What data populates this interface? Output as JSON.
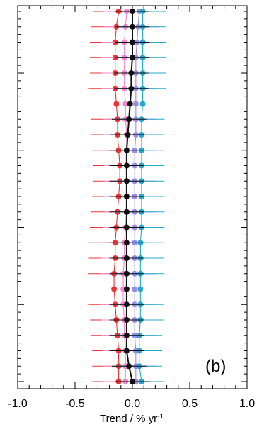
{
  "chart_data": {
    "type": "line",
    "panel_label": "(b)",
    "xlabel_text": "Trend / % yr",
    "xlabel_exponent": "-1",
    "xlim": [
      -1.0,
      1.0
    ],
    "x_ticks": [
      "-1.0",
      "-0.5",
      "0.0",
      "0.5",
      "1.0"
    ],
    "x_tick_values": [
      -1.0,
      -0.5,
      0.0,
      0.5,
      1.0
    ],
    "x_minor_step": 0.1,
    "y_levels": 25,
    "y_major_every": 5,
    "y_tick_labels_shown": false,
    "series": [
      {
        "color": "#ee3333",
        "x": [
          -0.12,
          -0.14,
          -0.15,
          -0.15,
          -0.15,
          -0.15,
          -0.14,
          -0.13,
          -0.13,
          -0.12,
          -0.11,
          -0.11,
          -0.12,
          -0.13,
          -0.14,
          -0.15,
          -0.15,
          -0.16,
          -0.16,
          -0.15,
          -0.14,
          -0.13,
          -0.12,
          -0.12,
          -0.12
        ],
        "err": [
          0.22,
          0.22,
          0.22,
          0.22,
          0.22,
          0.23,
          0.23,
          0.23,
          0.23,
          0.23,
          0.23,
          0.23,
          0.23,
          0.23,
          0.23,
          0.23,
          0.23,
          0.23,
          0.23,
          0.23,
          0.23,
          0.23,
          0.23,
          0.23,
          0.23
        ]
      },
      {
        "color": "#ee88cc",
        "x": [
          -0.05,
          -0.06,
          -0.07,
          -0.07,
          -0.07,
          -0.07,
          -0.06,
          -0.06,
          -0.05,
          -0.05,
          -0.05,
          -0.05,
          -0.05,
          -0.05,
          -0.06,
          -0.07,
          -0.07,
          -0.08,
          -0.08,
          -0.08,
          -0.07,
          -0.07,
          -0.06,
          -0.06,
          -0.06
        ],
        "err": [
          0.2,
          0.2,
          0.2,
          0.2,
          0.2,
          0.2,
          0.2,
          0.2,
          0.2,
          0.2,
          0.2,
          0.2,
          0.2,
          0.2,
          0.2,
          0.2,
          0.2,
          0.2,
          0.2,
          0.2,
          0.2,
          0.2,
          0.2,
          0.2,
          0.2
        ]
      },
      {
        "color": "#9b8bee",
        "x": [
          0.06,
          0.05,
          0.04,
          0.03,
          0.03,
          0.03,
          0.03,
          0.03,
          0.03,
          0.02,
          0.02,
          0.02,
          0.02,
          0.02,
          0.02,
          0.02,
          0.02,
          0.02,
          0.02,
          0.02,
          0.02,
          0.02,
          0.03,
          0.03,
          0.03
        ],
        "err": [
          0.18,
          0.18,
          0.18,
          0.18,
          0.18,
          0.18,
          0.18,
          0.18,
          0.18,
          0.18,
          0.18,
          0.18,
          0.18,
          0.18,
          0.18,
          0.18,
          0.18,
          0.18,
          0.18,
          0.18,
          0.18,
          0.18,
          0.18,
          0.18,
          0.18
        ]
      },
      {
        "color": "#22aacc",
        "x": [
          0.09,
          0.09,
          0.09,
          0.09,
          0.09,
          0.09,
          0.09,
          0.08,
          0.08,
          0.08,
          0.08,
          0.08,
          0.08,
          0.08,
          0.08,
          0.07,
          0.07,
          0.07,
          0.07,
          0.07,
          0.07,
          0.06,
          0.06,
          0.06,
          0.08
        ],
        "err": [
          0.2,
          0.2,
          0.2,
          0.2,
          0.2,
          0.2,
          0.2,
          0.2,
          0.2,
          0.2,
          0.2,
          0.2,
          0.2,
          0.2,
          0.2,
          0.2,
          0.2,
          0.2,
          0.2,
          0.2,
          0.2,
          0.2,
          0.2,
          0.2,
          0.2
        ]
      },
      {
        "color": "#111111",
        "x": [
          0.0,
          0.0,
          0.0,
          0.0,
          -0.01,
          -0.01,
          -0.02,
          -0.03,
          -0.04,
          -0.05,
          -0.05,
          -0.05,
          -0.05,
          -0.05,
          -0.05,
          -0.05,
          -0.05,
          -0.05,
          -0.05,
          -0.05,
          -0.05,
          -0.05,
          -0.05,
          -0.03,
          0.0
        ],
        "err": [
          0.15,
          0.15,
          0.15,
          0.15,
          0.15,
          0.15,
          0.15,
          0.15,
          0.15,
          0.15,
          0.15,
          0.15,
          0.15,
          0.15,
          0.15,
          0.15,
          0.15,
          0.15,
          0.15,
          0.15,
          0.15,
          0.15,
          0.15,
          0.15,
          0.15
        ]
      }
    ]
  }
}
